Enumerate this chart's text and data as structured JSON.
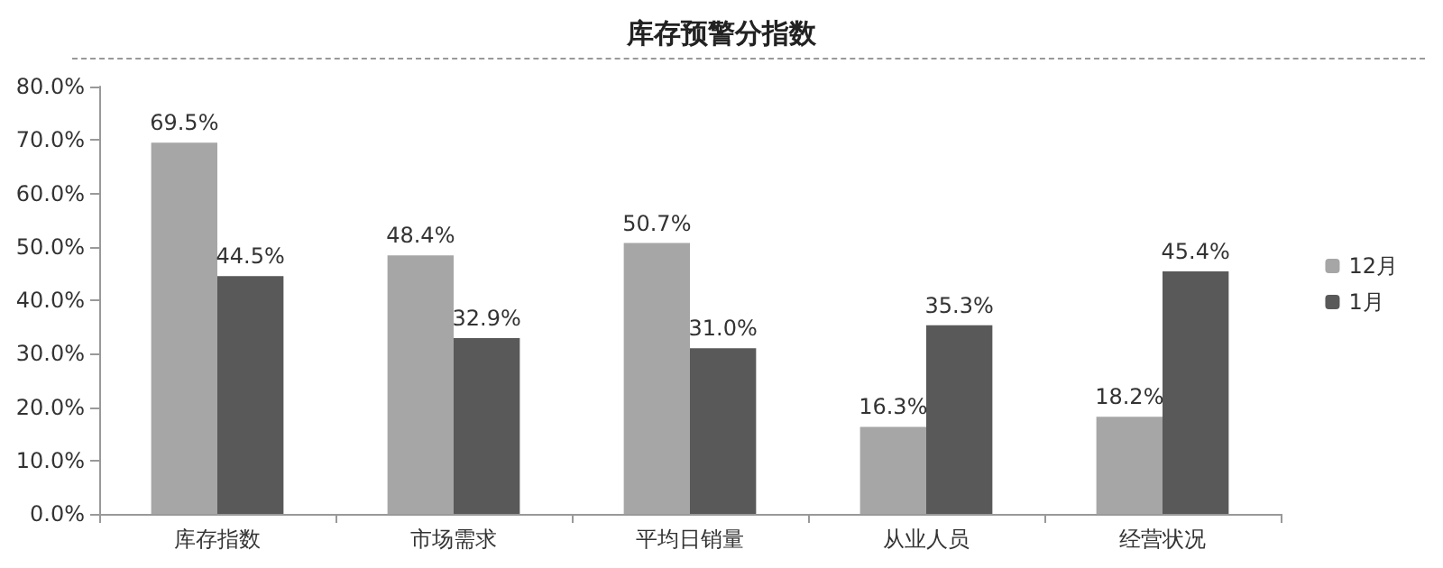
{
  "chart_data": {
    "type": "bar",
    "title": "库存预警分指数",
    "categories": [
      "库存指数",
      "市场需求",
      "平均日销量",
      "从业人员",
      "经营状况"
    ],
    "series": [
      {
        "name": "12月",
        "color": "#a6a6a6",
        "values": [
          69.5,
          48.4,
          50.7,
          16.3,
          18.2
        ],
        "value_labels": [
          "69.5%",
          "48.4%",
          "50.7%",
          "16.3%",
          "18.2%"
        ]
      },
      {
        "name": "1月",
        "color": "#595959",
        "values": [
          44.5,
          32.9,
          31.0,
          35.3,
          45.4
        ],
        "value_labels": [
          "44.5%",
          "32.9%",
          "31.0%",
          "35.3%",
          "45.4%"
        ]
      }
    ],
    "ylim": [
      0,
      80
    ],
    "yticks": [
      {
        "value": 0,
        "label": "0.0%"
      },
      {
        "value": 10,
        "label": "10.0%"
      },
      {
        "value": 20,
        "label": "20.0%"
      },
      {
        "value": 30,
        "label": "30.0%"
      },
      {
        "value": 40,
        "label": "40.0%"
      },
      {
        "value": 50,
        "label": "50.0%"
      },
      {
        "value": 60,
        "label": "60.0%"
      },
      {
        "value": 70,
        "label": "70.0%"
      },
      {
        "value": 80,
        "label": "80.0%"
      }
    ],
    "grid": false,
    "legend": "right"
  }
}
